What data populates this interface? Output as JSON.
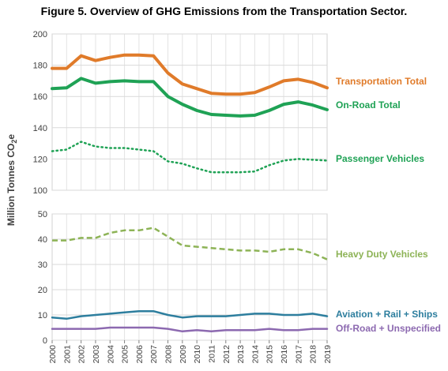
{
  "figure_title": "Figure 5. Overview of GHG Emissions from the Transportation Sector.",
  "y_axis_label": "Million Tonnes CO",
  "y_axis_label_subscript": "2",
  "y_axis_label_suffix": "e",
  "chart_data": [
    {
      "type": "line",
      "panel": "top",
      "x": [
        2000,
        2001,
        2002,
        2003,
        2004,
        2005,
        2006,
        2007,
        2008,
        2009,
        2010,
        2011,
        2012,
        2013,
        2014,
        2015,
        2016,
        2017,
        2018,
        2019
      ],
      "ylim": [
        100,
        200
      ],
      "yticks": [
        100,
        120,
        140,
        160,
        180,
        200
      ],
      "grid": true,
      "series": [
        {
          "name": "Transportation Total",
          "color": "#E07B2A",
          "style": "solid",
          "values": [
            178,
            178,
            186,
            183,
            185,
            186.5,
            186.5,
            186,
            175,
            168,
            165,
            162,
            161.5,
            161.5,
            162.5,
            166,
            170,
            171,
            169,
            165.5
          ]
        },
        {
          "name": "On-Road Total",
          "color": "#1FA255",
          "style": "solid",
          "values": [
            165,
            165.5,
            171.5,
            168.5,
            169.5,
            170,
            169.5,
            169.5,
            160,
            155,
            151,
            148.5,
            148,
            147.5,
            148,
            151,
            155,
            156.5,
            154.5,
            151.5
          ]
        },
        {
          "name": "Passenger Vehicles",
          "color": "#1FA255",
          "style": "dotted",
          "values": [
            125,
            126,
            131,
            128,
            127,
            127,
            126,
            125,
            118.5,
            117,
            114,
            111.5,
            111.5,
            111.5,
            112,
            116,
            119,
            120,
            119.5,
            119
          ]
        }
      ]
    },
    {
      "type": "line",
      "panel": "bottom",
      "x": [
        2000,
        2001,
        2002,
        2003,
        2004,
        2005,
        2006,
        2007,
        2008,
        2009,
        2010,
        2011,
        2012,
        2013,
        2014,
        2015,
        2016,
        2017,
        2018,
        2019
      ],
      "ylim": [
        0,
        50
      ],
      "yticks": [
        0,
        10,
        20,
        30,
        40,
        50
      ],
      "grid": true,
      "series": [
        {
          "name": "Heavy Duty Vehicles",
          "color": "#8DB356",
          "style": "dashed",
          "values": [
            39.5,
            39.5,
            40.5,
            40.5,
            42.5,
            43.5,
            43.5,
            44.5,
            41,
            37.5,
            37,
            36.5,
            36,
            35.5,
            35.5,
            35,
            36,
            36,
            34.5,
            32
          ]
        },
        {
          "name": "Aviation + Rail + Ships",
          "color": "#2D7E9E",
          "style": "solid",
          "values": [
            9,
            8.5,
            9.5,
            10,
            10.5,
            11,
            11.5,
            11.5,
            10,
            9,
            9.5,
            9.5,
            9.5,
            10,
            10.5,
            10.5,
            10,
            10,
            10.5,
            9.5
          ]
        },
        {
          "name": "Off-Road + Unspecified",
          "color": "#8C69B0",
          "style": "solid",
          "values": [
            4.5,
            4.5,
            4.5,
            4.5,
            5,
            5,
            5,
            5,
            4.5,
            3.5,
            4,
            3.5,
            4,
            4,
            4,
            4.5,
            4,
            4,
            4.5,
            4.5
          ]
        }
      ]
    }
  ]
}
